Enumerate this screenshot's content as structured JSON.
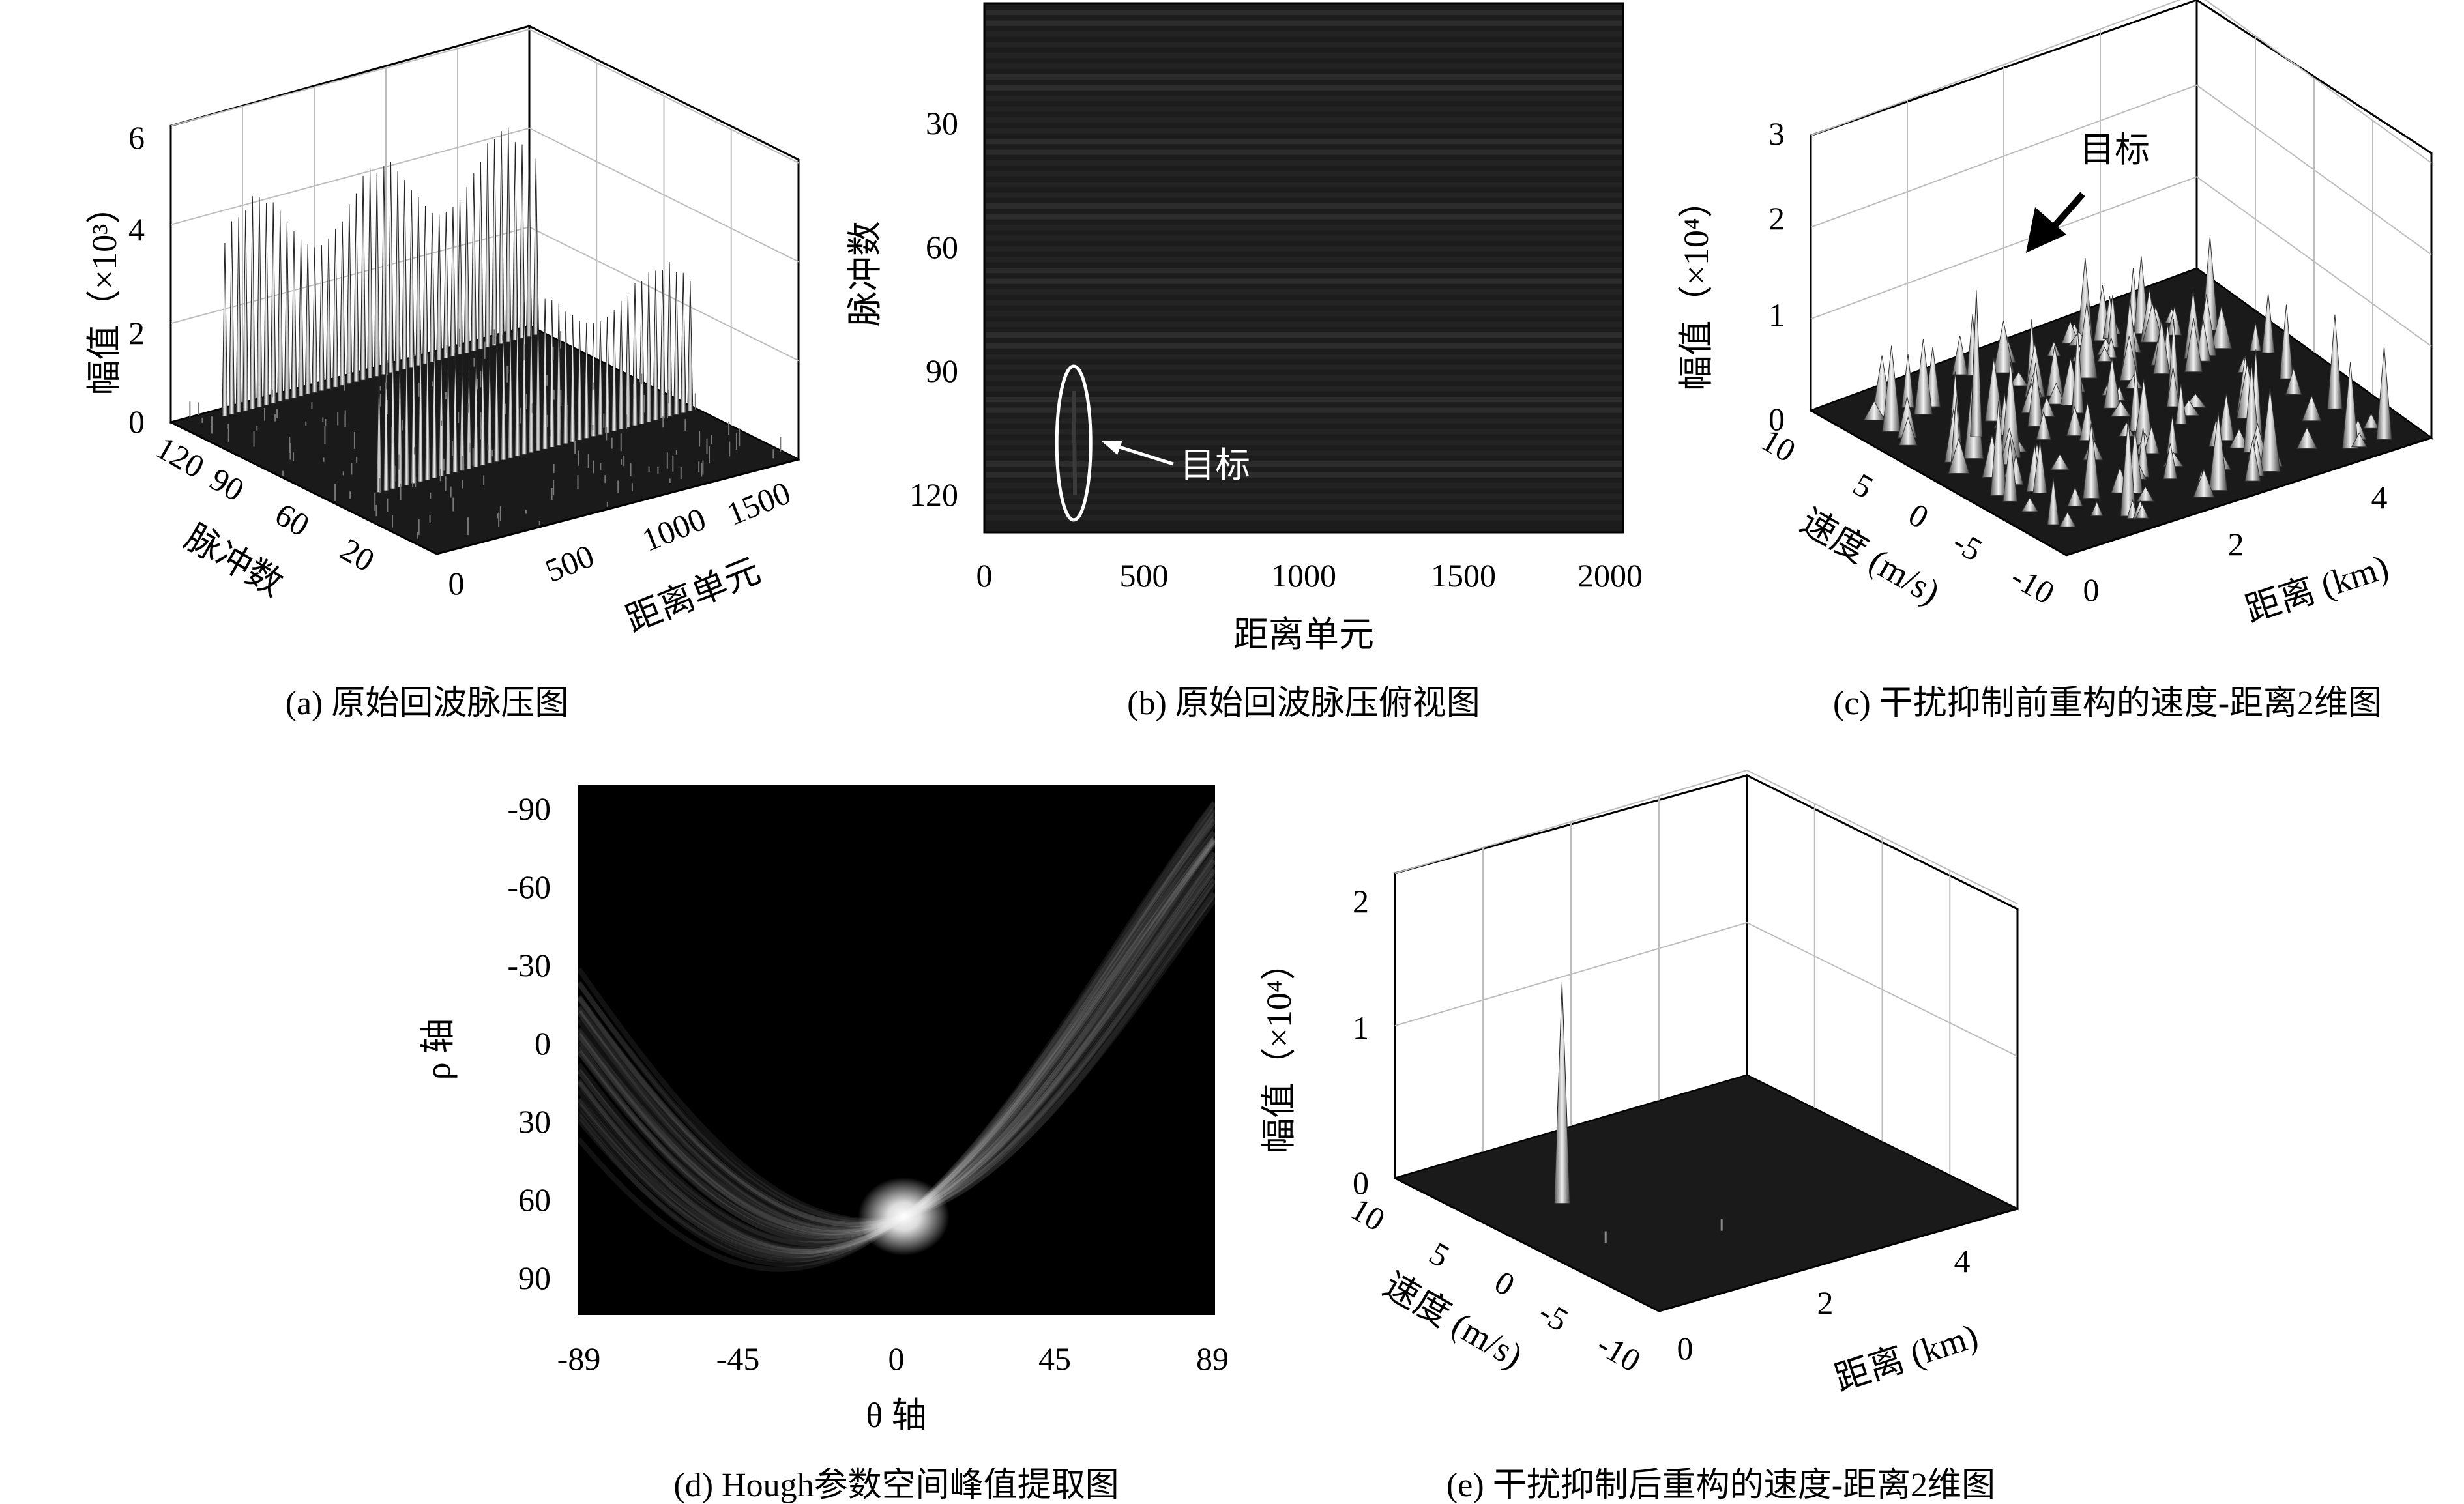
{
  "chart_data": [
    {
      "id": "a",
      "type": "surface3d",
      "caption": "(a) 原始回波脉压图",
      "xlabel": "距离单元",
      "ylabel": "脉冲数",
      "zlabel": "幅值（×10³）",
      "x_ticks": [
        "0",
        "500",
        "1000",
        "1500"
      ],
      "y_ticks": [
        "120",
        "90",
        "60",
        "20"
      ],
      "z_ticks": [
        "0",
        "2",
        "4",
        "6"
      ],
      "xlim": [
        0,
        1700
      ],
      "ylim": [
        0,
        128
      ],
      "zlim": [
        0,
        6
      ],
      "groups": [
        {
          "x_range": [
            0,
            40
          ],
          "peak_range": [
            2.8,
            4.4
          ]
        },
        {
          "x_range": [
            40,
            128
          ],
          "peak_range": [
            2.2,
            3.2
          ]
        }
      ]
    },
    {
      "id": "b",
      "type": "heatmap",
      "caption": "(b) 原始回波脉压俯视图",
      "xlabel": "距离单元",
      "ylabel": "脉冲数",
      "x_ticks": [
        "0",
        "500",
        "1000",
        "1500",
        "2000"
      ],
      "y_ticks": [
        "30",
        "60",
        "90",
        "120"
      ],
      "xlim": [
        0,
        2000
      ],
      "ylim": [
        0,
        128
      ],
      "annotation": {
        "text": "目标",
        "x": 280,
        "y_range": [
          100,
          128
        ]
      }
    },
    {
      "id": "c",
      "type": "surface3d",
      "caption": "(c) 干扰抑制前重构的速度-距离2维图",
      "xlabel": "距离 (km)",
      "ylabel": "速度 (m/s)",
      "zlabel": "幅值（×10⁴）",
      "x_ticks": [
        "0",
        "2",
        "4"
      ],
      "y_ticks": [
        "10",
        "5",
        "0",
        "-5",
        "-10"
      ],
      "z_ticks": [
        "0",
        "1",
        "2",
        "3"
      ],
      "xlim": [
        0,
        4.8
      ],
      "ylim": [
        -10,
        10
      ],
      "zlim": [
        0,
        3
      ],
      "annotation": {
        "text": "目标",
        "peak": {
          "x": 1.0,
          "y": 3.0,
          "z": 1.6
        }
      }
    },
    {
      "id": "d",
      "type": "heatmap",
      "caption": "(d) Hough参数空间峰值提取图",
      "xlabel": "θ 轴",
      "ylabel": "ρ 轴",
      "x_ticks": [
        "-89",
        "-45",
        "0",
        "45",
        "89"
      ],
      "y_ticks": [
        "-90",
        "-60",
        "-30",
        "0",
        "30",
        "60",
        "90"
      ],
      "xlim": [
        -89,
        89
      ],
      "ylim": [
        -100,
        100
      ],
      "peak": {
        "theta": 2,
        "rho": 63
      }
    },
    {
      "id": "e",
      "type": "surface3d",
      "caption": "(e) 干扰抑制后重构的速度-距离2维图",
      "xlabel": "距离 (km)",
      "ylabel": "速度 (m/s)",
      "zlabel": "幅值（×10⁴）",
      "x_ticks": [
        "0",
        "2",
        "4"
      ],
      "y_ticks": [
        "10",
        "5",
        "0",
        "-5",
        "-10"
      ],
      "z_ticks": [
        "0",
        "1",
        "2"
      ],
      "xlim": [
        0,
        4.8
      ],
      "ylim": [
        -10,
        10
      ],
      "zlim": [
        0,
        2
      ],
      "peak": {
        "x": 1.0,
        "y": 3.0,
        "z": 1.45
      }
    }
  ],
  "colors": {
    "axis": "#000000",
    "grid": "#bdbdbd",
    "surface": "#1a1a1a",
    "image_bg": "#1c1c1c"
  },
  "icons": {
    "arrow": "arrow-icon"
  }
}
